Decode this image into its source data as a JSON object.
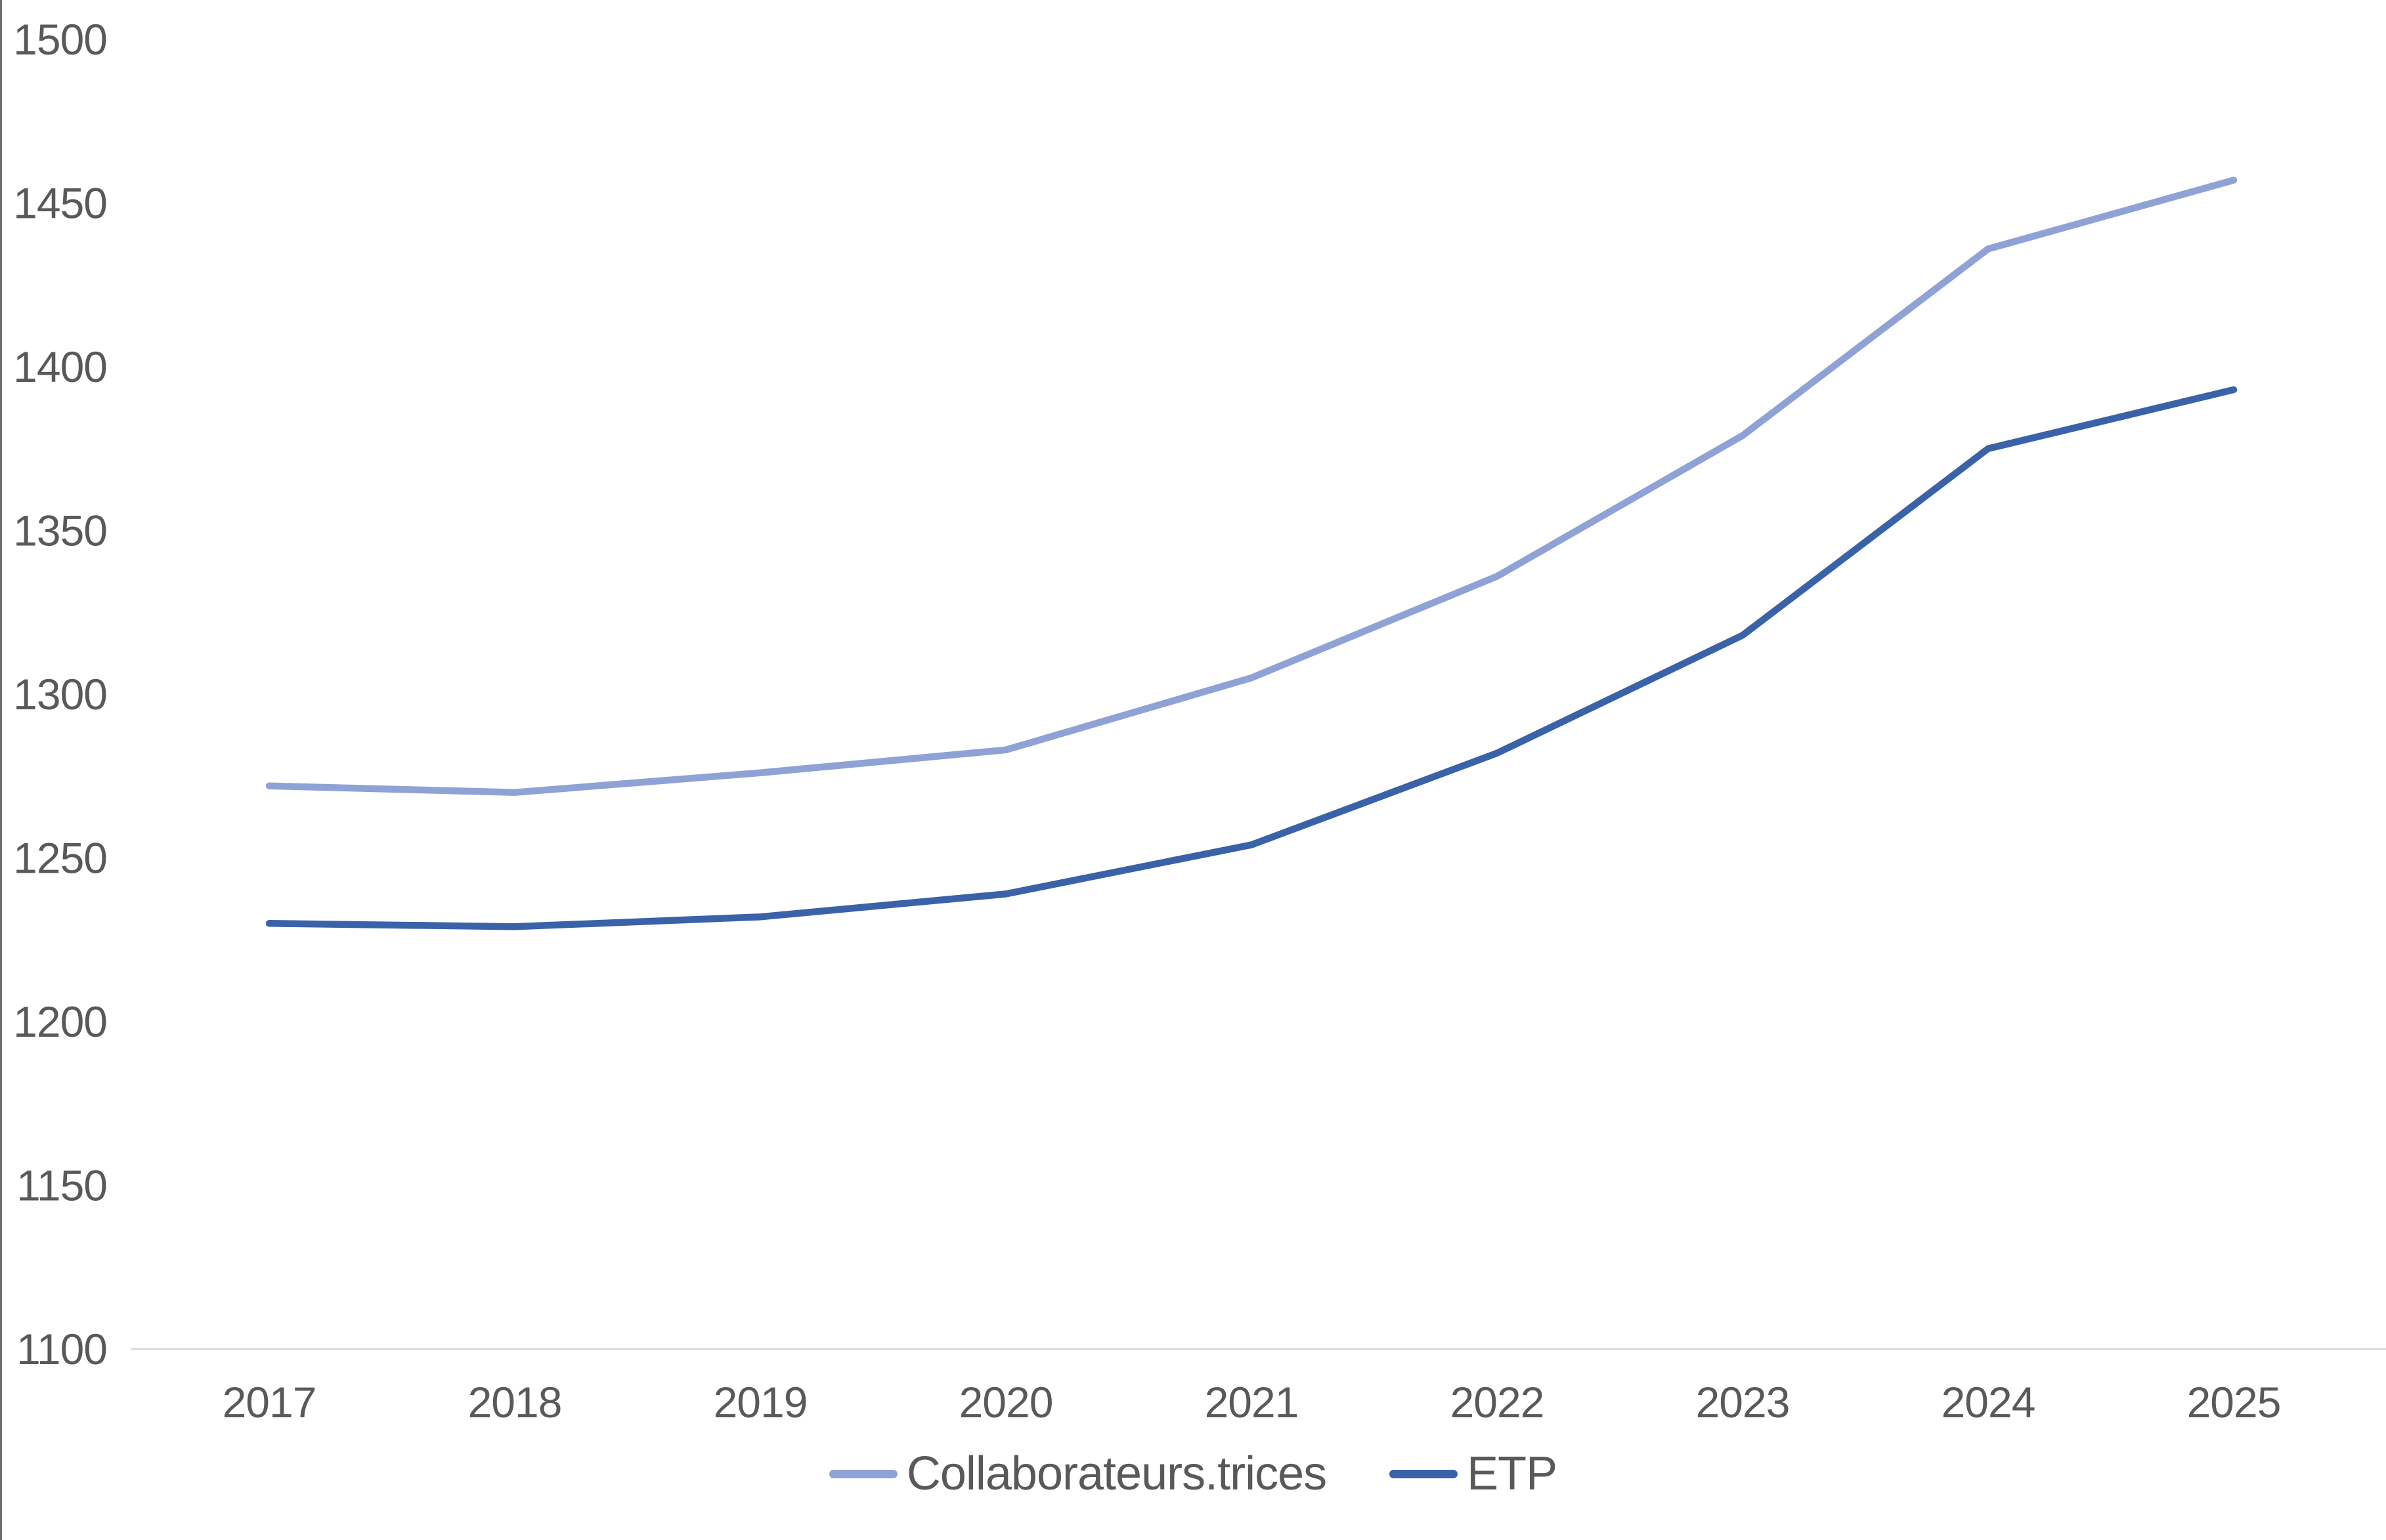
{
  "chart_data": {
    "type": "line",
    "title": "",
    "xlabel": "",
    "ylabel": "",
    "categories": [
      "2017",
      "2018",
      "2019",
      "2020",
      "2021",
      "2022",
      "2023",
      "2024",
      "2025"
    ],
    "series": [
      {
        "name": "Collaborateurs.trices",
        "color": "#8FA2D6",
        "values": [
          1272,
          1270,
          1276,
          1283,
          1305,
          1336,
          1379,
          1436,
          1457
        ]
      },
      {
        "name": "ETP",
        "color": "#3A62A8",
        "values": [
          1230,
          1229,
          1232,
          1239,
          1254,
          1282,
          1318,
          1375,
          1393
        ]
      }
    ],
    "ylim": [
      1100,
      1500
    ],
    "ytick_step": 50,
    "yticks": [
      1100,
      1150,
      1200,
      1250,
      1300,
      1350,
      1400,
      1450,
      1500
    ],
    "grid": false,
    "legend_position": "bottom",
    "axis_line_color": "#D9D9D9",
    "text_color": "#595959"
  },
  "legend": {
    "items": [
      {
        "label": "Collaborateurs.trices"
      },
      {
        "label": "ETP"
      }
    ]
  }
}
